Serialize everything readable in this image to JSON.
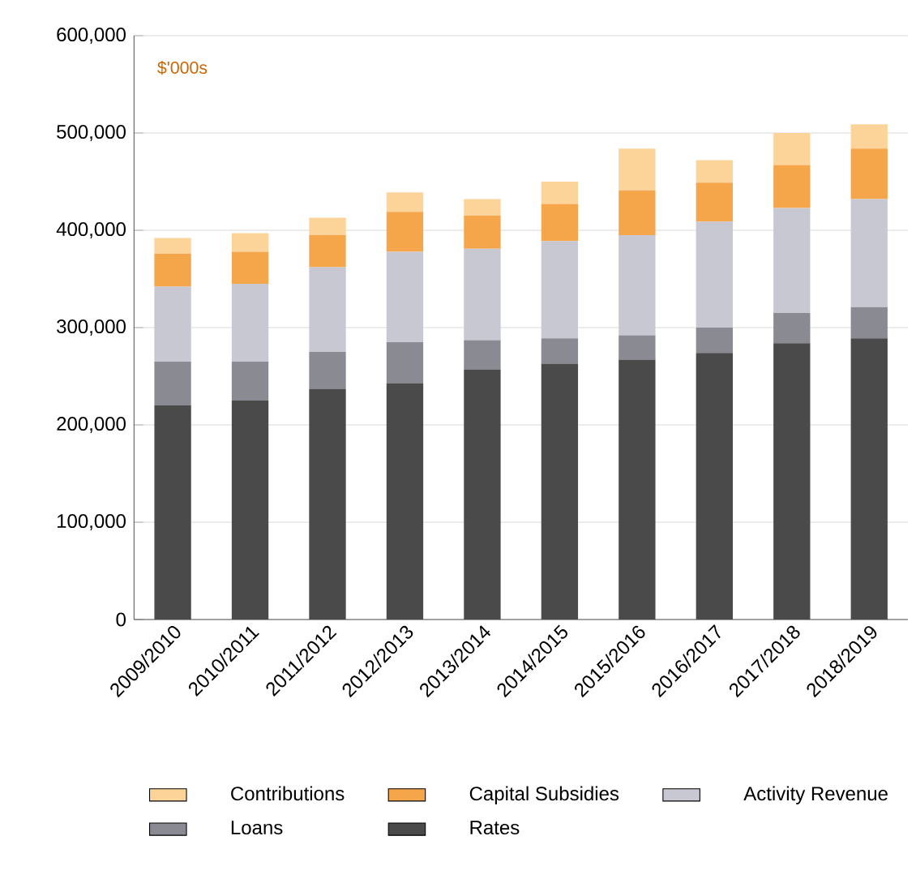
{
  "chart_data": {
    "type": "bar",
    "stacked": true,
    "categories": [
      "2009/2010",
      "2010/2011",
      "2011/2012",
      "2012/2013",
      "2013/2014",
      "2014/2015",
      "2015/2016",
      "2016/2017",
      "2017/2018",
      "2018/2019"
    ],
    "series": [
      {
        "name": "Rates",
        "color": "#4a4a4a",
        "values": [
          220000,
          225000,
          237000,
          243000,
          257000,
          263000,
          267000,
          274000,
          284000,
          289000
        ]
      },
      {
        "name": "Loans",
        "color": "#8a8a92",
        "values": [
          45000,
          40000,
          38000,
          42000,
          30000,
          26000,
          25000,
          26000,
          31000,
          32000
        ]
      },
      {
        "name": "Activity Revenue",
        "color": "#c8c8d2",
        "values": [
          77000,
          80000,
          87000,
          93000,
          94000,
          100000,
          103000,
          109000,
          108000,
          111000
        ]
      },
      {
        "name": "Capital Subsidies",
        "color": "#f5a54a",
        "values": [
          34000,
          33000,
          33000,
          41000,
          34000,
          38000,
          46000,
          40000,
          44000,
          52000
        ]
      },
      {
        "name": "Contributions",
        "color": "#fcd49a",
        "values": [
          16000,
          19000,
          18000,
          20000,
          17000,
          23000,
          43000,
          23000,
          33000,
          25000
        ]
      }
    ],
    "ylim": [
      0,
      600000
    ],
    "yticks": [
      {
        "value": 0,
        "label": "0"
      },
      {
        "value": 100000,
        "label": "100,000"
      },
      {
        "value": 200000,
        "label": "200,000"
      },
      {
        "value": 300000,
        "label": "300,000"
      },
      {
        "value": 400000,
        "label": "400,000"
      },
      {
        "value": 500000,
        "label": "500,000"
      },
      {
        "value": 600000,
        "label": "600,000"
      }
    ],
    "grid": "y",
    "legend": "bottom",
    "annotations": [
      "$'000s"
    ]
  }
}
